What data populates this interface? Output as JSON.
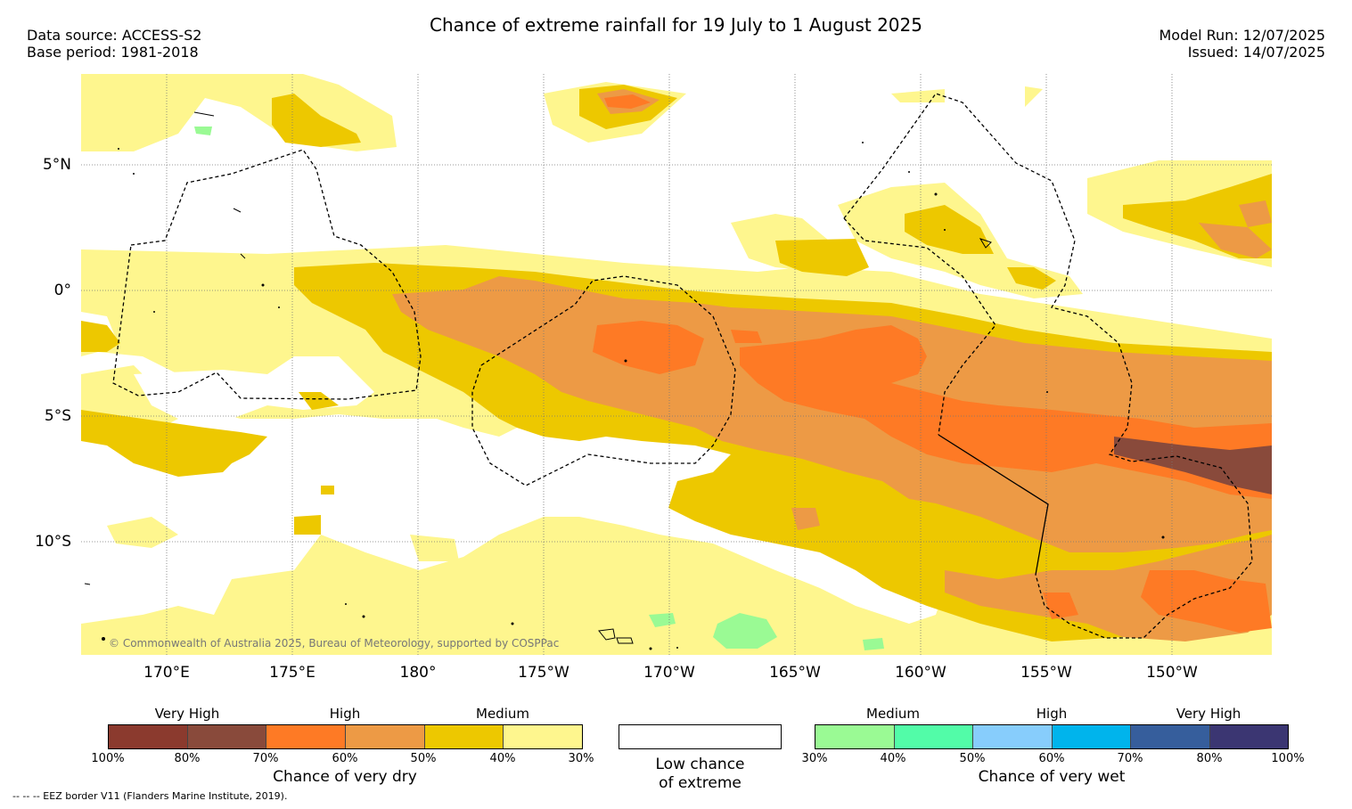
{
  "header": {
    "title": "Chance of extreme rainfall for 19 July to 1 August 2025",
    "source": "Data source: ACCESS-S2",
    "base_period": "Base period: 1981-2018",
    "model_run": "Model Run: 12/07/2025",
    "issued": "Issued: 14/07/2025"
  },
  "map": {
    "lat_labels": [
      "5°N",
      "0°",
      "5°S",
      "10°S"
    ],
    "lon_labels": [
      "170°E",
      "175°E",
      "180°",
      "175°W",
      "170°W",
      "165°W",
      "160°W",
      "155°W",
      "150°W"
    ],
    "copyright": "© Commonwealth of Australia 2025, Bureau of Meteorology, supported by COSPPac",
    "eez_note": "--  --  -- EEZ border V11 (Flanders Marine Institute, 2019)."
  },
  "legend": {
    "dry": {
      "categories": [
        "Very High",
        "High",
        "Medium"
      ],
      "ticks": [
        "100%",
        "80%",
        "70%",
        "60%",
        "50%",
        "40%",
        "30%"
      ],
      "caption": "Chance of very dry",
      "colors": [
        "#8B3A2E",
        "#894A3B",
        "#FE7A25",
        "#ED9A45",
        "#EDC800",
        "#FEF68E"
      ]
    },
    "low": {
      "caption_line1": "Low chance",
      "caption_line2": "of extreme"
    },
    "wet": {
      "categories": [
        "Medium",
        "High",
        "Very High"
      ],
      "ticks": [
        "30%",
        "40%",
        "50%",
        "60%",
        "70%",
        "80%",
        "100%"
      ],
      "caption": "Chance of very wet",
      "colors": [
        "#9AFA94",
        "#52FCA8",
        "#87CDFC",
        "#00B4EC",
        "#365E9C",
        "#3B3672"
      ]
    }
  }
}
